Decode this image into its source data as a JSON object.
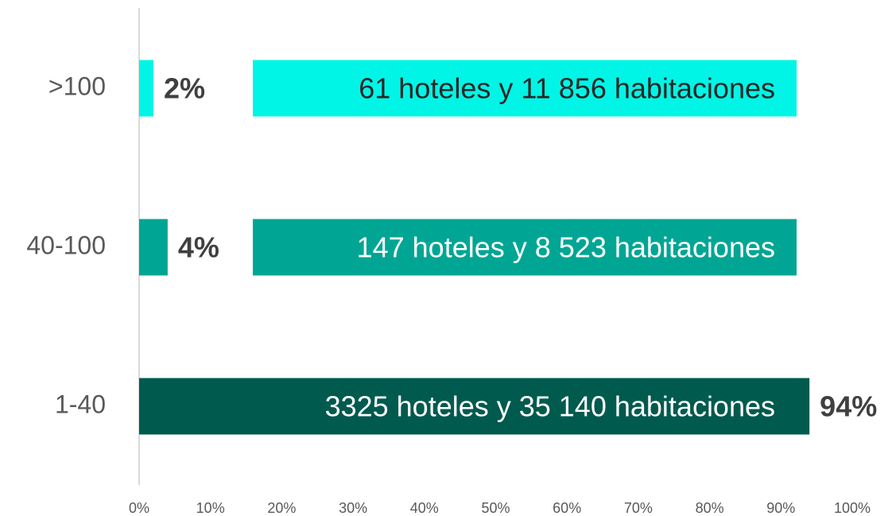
{
  "chart_data": {
    "type": "bar",
    "orientation": "horizontal",
    "categories": [
      ">100",
      "40-100",
      "1-40"
    ],
    "values": [
      2,
      4,
      94
    ],
    "value_labels": [
      "2%",
      "4%",
      "94%"
    ],
    "colors": [
      "#00f5e6",
      "#00a693",
      "#005a4e"
    ],
    "annotations": [
      "61 hoteles y 11 856 habitaciones",
      "147 hoteles y 8 523 habitaciones",
      "3325 hoteles y 35 140 habitaciones"
    ],
    "xlim": [
      0,
      100
    ],
    "xticks": [
      {
        "value": 0,
        "label": "0%"
      },
      {
        "value": 10,
        "label": "10%"
      },
      {
        "value": 20,
        "label": "20%"
      },
      {
        "value": 30,
        "label": "30%"
      },
      {
        "value": 40,
        "label": "40%"
      },
      {
        "value": 50,
        "label": "50%"
      },
      {
        "value": 60,
        "label": "60%"
      },
      {
        "value": 70,
        "label": "70%"
      },
      {
        "value": 80,
        "label": "80%"
      },
      {
        "value": 90,
        "label": "90%"
      },
      {
        "value": 100,
        "label": "100%"
      }
    ],
    "grid": false
  }
}
